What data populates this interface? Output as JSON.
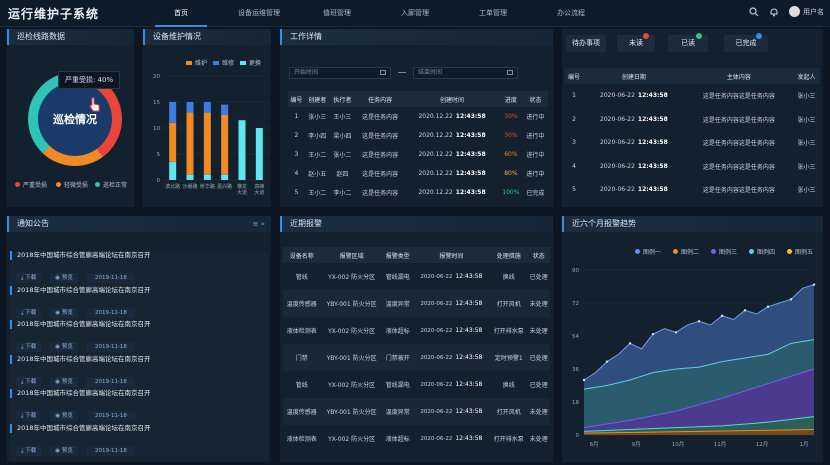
{
  "header": {
    "title": "运行维护子系统",
    "nav": [
      "首页",
      "设备运维管理",
      "值班管理",
      "入廊管理",
      "工单管理",
      "办公流程"
    ],
    "username": "用户名"
  },
  "patrol": {
    "title": "巡检线路数据",
    "center": "巡检情况",
    "tooltip": "严重受损: 40%",
    "legend": [
      {
        "label": "严重受损",
        "color": "#e8463c"
      },
      {
        "label": "轻微受损",
        "color": "#f08a24"
      },
      {
        "label": "巡检正常",
        "color": "#2ec4b6"
      }
    ]
  },
  "maintenance": {
    "title": "设备维护情况",
    "legend": [
      {
        "label": "维护",
        "color": "#f08a24"
      },
      {
        "label": "维修",
        "color": "#3b7de0"
      },
      {
        "label": "更换",
        "color": "#5ee7f0"
      }
    ],
    "yticks": [
      "0",
      "5",
      "10",
      "15",
      "20"
    ],
    "categories": [
      "滨北路",
      "沙缓路",
      "桥华路",
      "嘉兴路",
      "横龙\n大道",
      "高峰\n大道"
    ]
  },
  "chart_data": {
    "type": "bar",
    "categories": [
      "滨北路",
      "沙缓路",
      "桥华路",
      "嘉兴路",
      "横龙大道",
      "高峰大道"
    ],
    "ylim": [
      0,
      20
    ],
    "series": [
      {
        "name": "维护",
        "values": [
          7.5,
          12,
          12,
          11.5,
          0,
          0
        ]
      },
      {
        "name": "维修",
        "values": [
          4,
          2,
          2,
          2,
          0,
          0
        ]
      },
      {
        "name": "更换",
        "values": [
          3.5,
          1,
          1,
          1,
          11.5,
          10
        ]
      }
    ]
  },
  "work": {
    "title": "工作详情",
    "start_placeholder": "开始时间",
    "end_placeholder": "结束时间",
    "headers": [
      "编号",
      "创建者",
      "执行者",
      "任务内容",
      "创建时间",
      "进度",
      "状态"
    ],
    "rows": [
      [
        "1",
        "张小三",
        "王小三",
        "这是任务内容",
        "2020.12.22",
        "12:43:58",
        "30%",
        "进行中"
      ],
      [
        "2",
        "李小四",
        "梁小四",
        "这是任务内容",
        "2020.12.22",
        "12:43:58",
        "30%",
        "进行中"
      ],
      [
        "3",
        "王小二",
        "张小二",
        "这是任务内容",
        "2020.12.22",
        "12:43:58",
        "60%",
        "进行中"
      ],
      [
        "4",
        "赵小五",
        "赵四",
        "这是任务内容",
        "2020.12.22",
        "12:43:58",
        "80%",
        "进行中"
      ],
      [
        "5",
        "王小二",
        "李小二",
        "这是任务内容",
        "2020.12.22",
        "12:43:58",
        "100%",
        "已完成"
      ]
    ],
    "progress_colors": [
      "#e8463c",
      "#e8463c",
      "#f08a24",
      "#f0b824",
      "#2ec47a"
    ]
  },
  "todo": {
    "tabs": [
      "待办事项",
      "未读",
      "已读",
      "已完成"
    ],
    "headers": [
      "编号",
      "创建日期",
      "主体内容",
      "发起人"
    ],
    "rows": [
      [
        "1",
        "2020-06-22",
        "12:43:58",
        "这是任务内容这是任务内容",
        "张小三"
      ],
      [
        "2",
        "2020-06-22",
        "12:43:58",
        "这是任务内容这是任务内容",
        "张小三"
      ],
      [
        "3",
        "2020-06-22",
        "12:43:58",
        "这是任务内容这是任务内容",
        "张小三"
      ],
      [
        "4",
        "2020-06-22",
        "12:43:58",
        "这是任务内容这是任务内容",
        "张小三"
      ],
      [
        "5",
        "2020-06-22",
        "12:43:58",
        "这是任务内容这是任务内容",
        "张小三"
      ]
    ]
  },
  "notice": {
    "title": "通知公告",
    "items": [
      {
        "title": "2018年中国城市综合管廊高端论坛在南京召开",
        "download": "下载",
        "preview": "预览",
        "date": "2019-11-18"
      },
      {
        "title": "2018年中国城市综合管廊高端论坛在南京召开",
        "download": "下载",
        "preview": "预览",
        "date": "2019-11-18"
      },
      {
        "title": "2018年中国城市综合管廊高端论坛在南京召开",
        "download": "下载",
        "preview": "预览",
        "date": "2019-11-18"
      },
      {
        "title": "2018年中国城市综合管廊高端论坛在南京召开",
        "download": "下载",
        "preview": "预览",
        "date": "2019-11-18"
      },
      {
        "title": "2018年中国城市综合管廊高端论坛在南京召开",
        "download": "下载",
        "preview": "预览",
        "date": "2019-11-18"
      },
      {
        "title": "2018年中国城市综合管廊高端论坛在南京召开",
        "download": "下载",
        "preview": "预览",
        "date": "2019-11-18"
      }
    ]
  },
  "alarm": {
    "title": "近期报警",
    "headers": [
      "设备名称",
      "报警区域",
      "报警类型",
      "报警时间",
      "处理措施",
      "状态"
    ],
    "rows": [
      [
        "管线",
        "YX-002 防火分区",
        "管线漏电",
        "2020-06-22",
        "12:43:58",
        "换线",
        "已处理"
      ],
      [
        "温度传感器",
        "YBY-001 防火分区",
        "温度异常",
        "2020-06-22",
        "12:43:58",
        "打开风机",
        "未处理"
      ],
      [
        "液体检测表",
        "YX-002 防火分区",
        "液体超标",
        "2020-06-22",
        "12:43:58",
        "打开排水泵",
        "未处理"
      ],
      [
        "门禁",
        "YBY-001 防火分区",
        "门禁被开",
        "2020-06-22",
        "12:43:58",
        "定时预警1",
        "已处理"
      ],
      [
        "管线",
        "YX-002 防火分区",
        "管线漏电",
        "2020-06-22",
        "12:43:58",
        "换线",
        "已处理"
      ],
      [
        "温度传感器",
        "YBY-001 防火分区",
        "温度异常",
        "2020-06-22",
        "12:43:58",
        "打开风机",
        "未处理"
      ],
      [
        "液体检测表",
        "YX-002 防火分区",
        "液体超标",
        "2020-06-22",
        "12:43:58",
        "打开排水泵",
        "未处理"
      ]
    ]
  },
  "trend": {
    "title": "近六个月报警趋势",
    "legend": [
      {
        "label": "图例一",
        "color": "#5b8ff9"
      },
      {
        "label": "图例二",
        "color": "#f08a24"
      },
      {
        "label": "图例三",
        "color": "#7b5cf0"
      },
      {
        "label": "图例四",
        "color": "#5ecfe8"
      },
      {
        "label": "图例五",
        "color": "#f0c224"
      }
    ],
    "yticks": [
      "0",
      "18",
      "36",
      "54",
      "72",
      "90"
    ],
    "xticks": [
      "8月",
      "9月",
      "10月",
      "11月",
      "12月",
      "1月"
    ]
  }
}
